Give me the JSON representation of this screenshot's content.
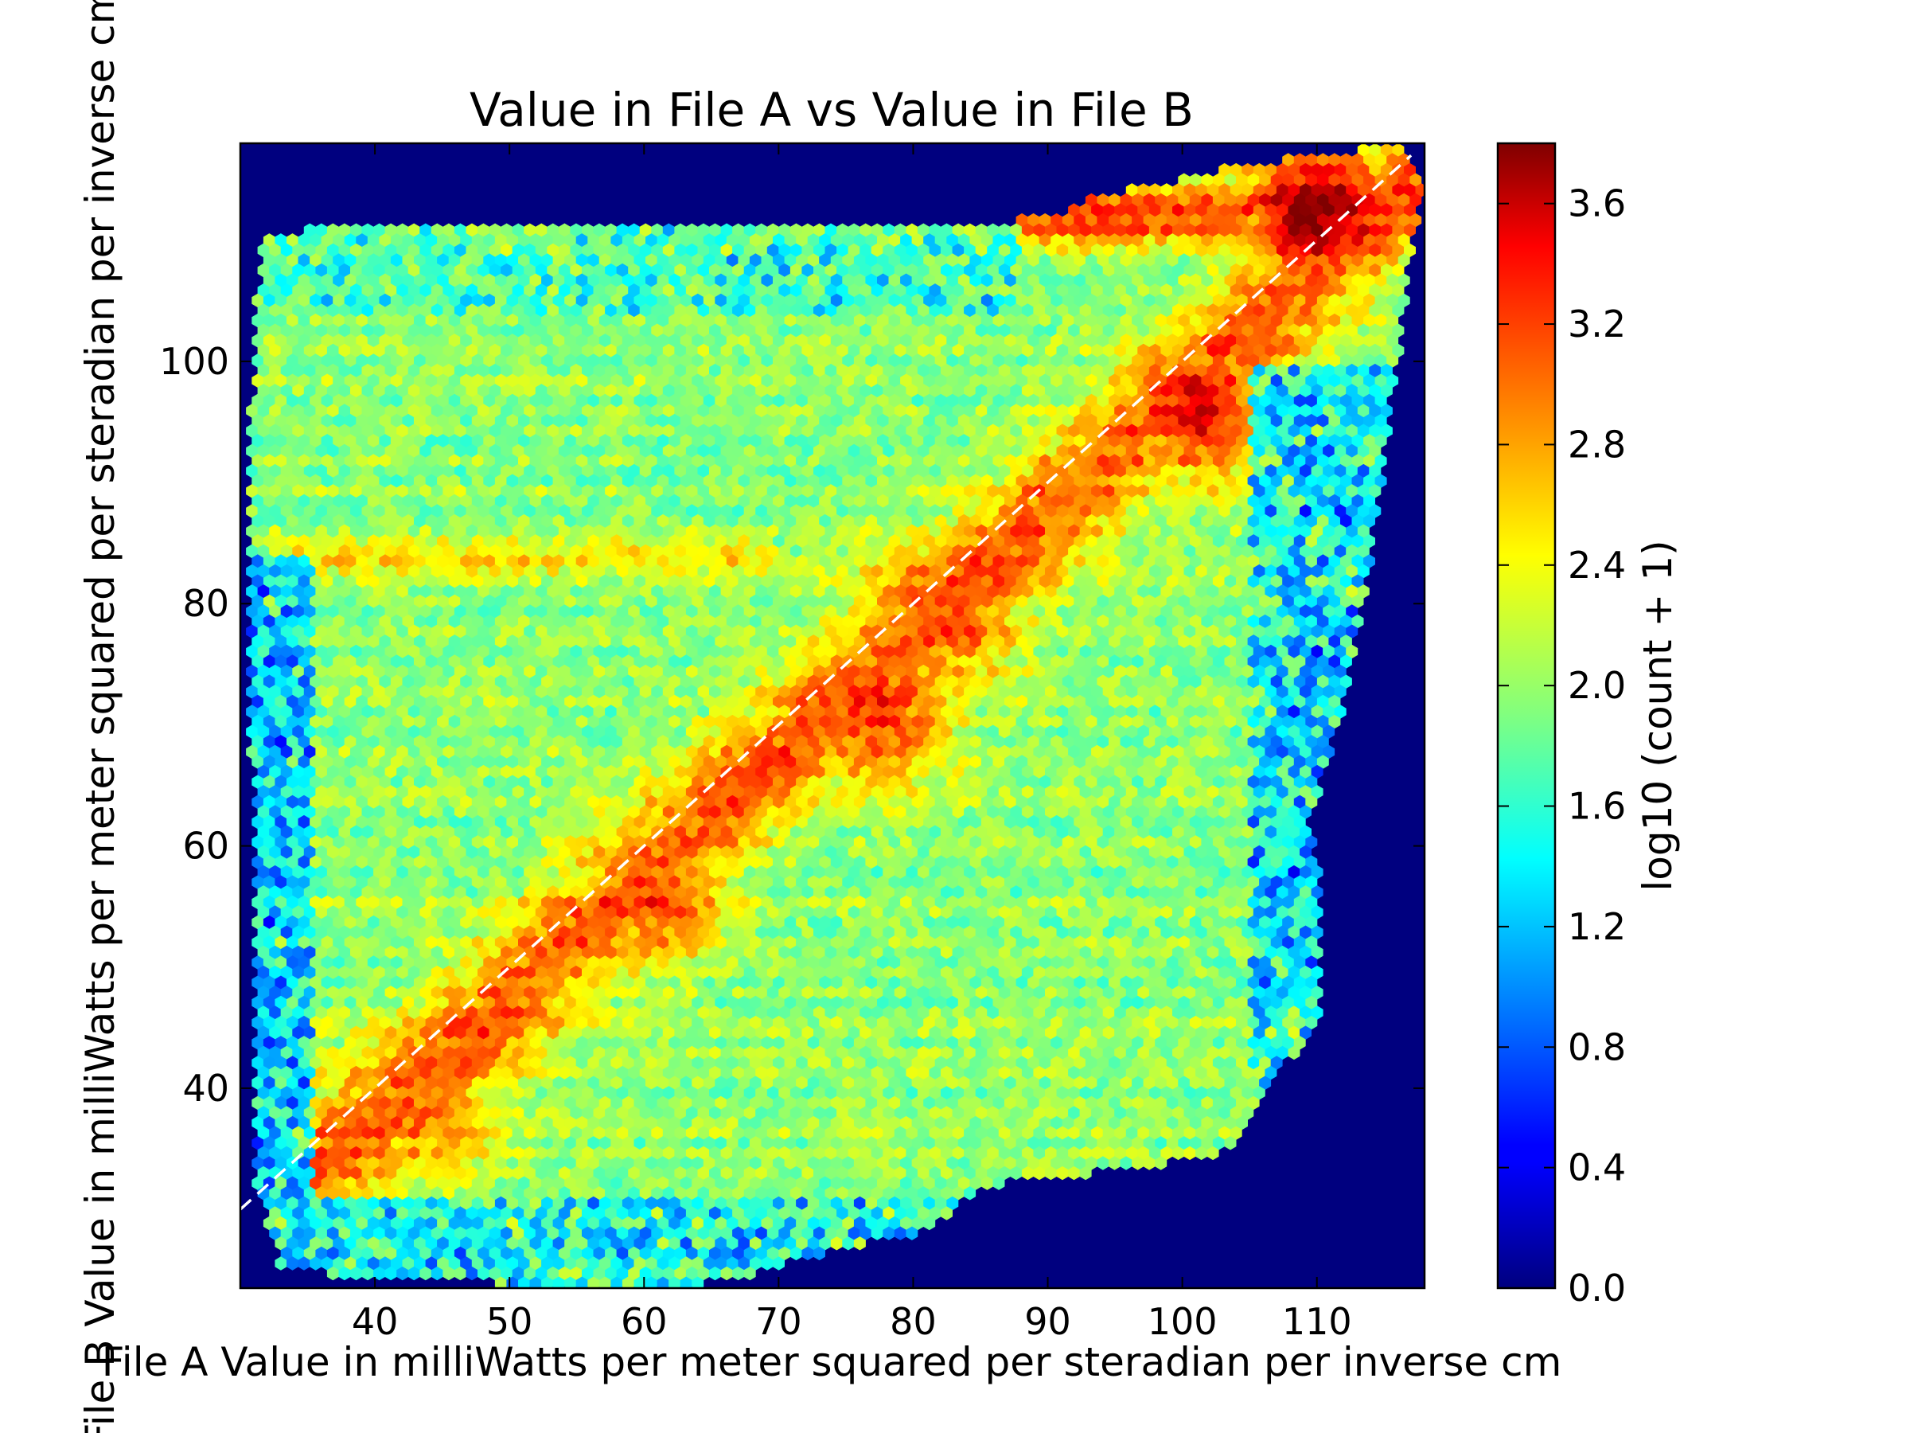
{
  "chart_data": {
    "type": "heatmap",
    "subtype": "hexbin",
    "title": "Value in File A vs Value in File B",
    "xlabel": "File A Value in milliWatts per meter squared per steradian per inverse cm",
    "ylabel": "File B Value in milliWatts per meter squared per steradian per inverse cm",
    "xlim": [
      30,
      118
    ],
    "ylim": [
      23.5,
      118
    ],
    "xticks": [
      40,
      50,
      60,
      70,
      80,
      90,
      100,
      110
    ],
    "yticks": [
      40,
      60,
      80,
      100
    ],
    "xtick_labels": [
      "40",
      "50",
      "60",
      "70",
      "80",
      "90",
      "100",
      "110"
    ],
    "ytick_labels": [
      "40",
      "60",
      "80",
      "100"
    ],
    "colorbar": {
      "label": "log10 (count + 1)",
      "colormap": "jet",
      "range": [
        0.0,
        3.8
      ],
      "ticks": [
        0.0,
        0.4,
        0.8,
        1.2,
        1.6,
        2.0,
        2.4,
        2.8,
        3.2,
        3.6
      ],
      "tick_labels": [
        "0.0",
        "0.4",
        "0.8",
        "1.2",
        "1.6",
        "2.0",
        "2.4",
        "2.8",
        "3.2",
        "3.6"
      ]
    },
    "background_value": 0.0,
    "reference_line": {
      "style": "dashed",
      "color": "#ffffff",
      "from": [
        30,
        30
      ],
      "to": [
        117,
        117
      ]
    },
    "footprint_polygon": [
      [
        31,
        33
      ],
      [
        33,
        25
      ],
      [
        45,
        24
      ],
      [
        60,
        23.5
      ],
      [
        66,
        24
      ],
      [
        72,
        26
      ],
      [
        80,
        28
      ],
      [
        86,
        32
      ],
      [
        100,
        34
      ],
      [
        104,
        35
      ],
      [
        106,
        40
      ],
      [
        110,
        45
      ],
      [
        110.5,
        55
      ],
      [
        109.5,
        62
      ],
      [
        112,
        72
      ],
      [
        113,
        78
      ],
      [
        114,
        84
      ],
      [
        116,
        100
      ],
      [
        117,
        110
      ],
      [
        118,
        114
      ],
      [
        116.5,
        118
      ],
      [
        103,
        116
      ],
      [
        100,
        115
      ],
      [
        93,
        113.5
      ],
      [
        91,
        112
      ],
      [
        88,
        112
      ],
      [
        87,
        111
      ],
      [
        70,
        111.5
      ],
      [
        55,
        111.5
      ],
      [
        35,
        111
      ],
      [
        31.5,
        110
      ],
      [
        31,
        100
      ],
      [
        30.5,
        90
      ],
      [
        30.5,
        85
      ],
      [
        31,
        60
      ]
    ],
    "density_components": [
      {
        "name": "baseline",
        "value": 1.95
      },
      {
        "name": "diagonal ridge",
        "along": "y = x - 2.5",
        "x_range": [
          35,
          117
        ],
        "peak_value": 3.0,
        "spread": 3.2
      },
      {
        "name": "peak",
        "center": [
          110,
          112
        ],
        "value": 3.75
      },
      {
        "name": "peak",
        "center": [
          77,
          71
        ],
        "value": 3.2
      },
      {
        "name": "peak",
        "center": [
          82,
          79
        ],
        "value": 3.15
      },
      {
        "name": "peak",
        "center": [
          60,
          56
        ],
        "value": 3.1
      },
      {
        "name": "peak",
        "center": [
          43,
          38
        ],
        "value": 2.9
      },
      {
        "name": "peak",
        "center": [
          101,
          96
        ],
        "value": 3.4
      },
      {
        "name": "ridge",
        "along": "y = 84",
        "x_range": [
          32,
          70
        ],
        "value": 2.45
      },
      {
        "name": "sparse band",
        "center": [
          40,
          110
        ],
        "value": 0.9
      },
      {
        "name": "sparse band",
        "center": [
          55,
          26
        ],
        "value": 0.8
      },
      {
        "name": "sparse edge",
        "along": "x = 33",
        "y_range": [
          35,
          85
        ],
        "value": 0.9
      },
      {
        "name": "sparse edge",
        "along": "right boundary",
        "y_range": [
          45,
          95
        ],
        "value": 0.9
      },
      {
        "name": "high band",
        "along": "y = 112",
        "x_range": [
          88,
          105
        ],
        "value": 3.1
      }
    ]
  }
}
